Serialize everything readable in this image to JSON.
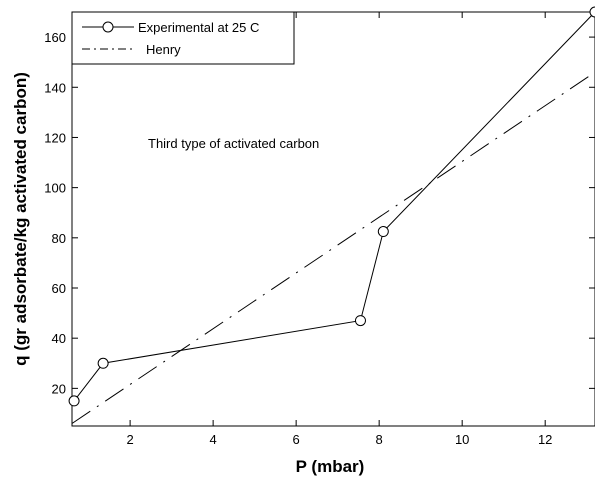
{
  "chart_data": {
    "type": "line",
    "xlabel": "P (mbar)",
    "ylabel": "q (gr adsorbate/kg activated carbon)",
    "xlim": [
      0.6,
      13.2
    ],
    "ylim": [
      5,
      170
    ],
    "xticks": [
      2,
      4,
      6,
      8,
      10,
      12
    ],
    "yticks": [
      20,
      40,
      60,
      80,
      100,
      120,
      140,
      160
    ],
    "grid": false,
    "legend_position": "top-left",
    "annotation": "Third type of activated carbon",
    "series": [
      {
        "name": "Experimental at 25 C",
        "style": "solid-circle-markers",
        "color": "#000000",
        "x": [
          0.65,
          1.35,
          7.55,
          8.1,
          13.2
        ],
        "y": [
          15,
          30,
          47,
          82.5,
          170
        ]
      },
      {
        "name": "Henry",
        "style": "dashed",
        "color": "#000000",
        "x": [
          0.6,
          13.2
        ],
        "y": [
          6,
          146
        ]
      }
    ]
  }
}
